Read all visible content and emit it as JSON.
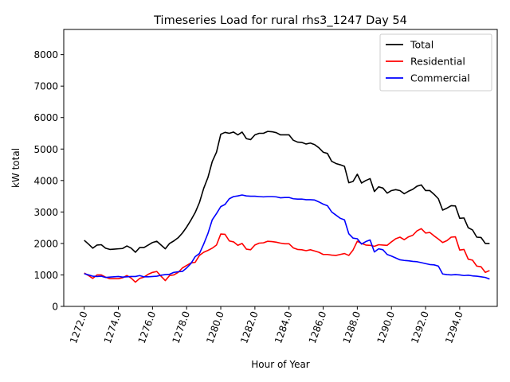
{
  "chart_data": {
    "type": "line",
    "title": "Timeseries Load for rural rhs3_1247  Day 54",
    "xlabel": "Hour of Year",
    "ylabel": "kW total",
    "xlim": [
      1270.8,
      1296.2
    ],
    "ylim": [
      0,
      8800
    ],
    "xticks": [
      1272,
      1274,
      1276,
      1278,
      1280,
      1282,
      1284,
      1286,
      1288,
      1290,
      1292,
      1294
    ],
    "xtick_labels": [
      "1272.0",
      "1274.0",
      "1276.0",
      "1278.0",
      "1280.0",
      "1282.0",
      "1284.0",
      "1286.0",
      "1288.0",
      "1290.0",
      "1292.0",
      "1294.0"
    ],
    "yticks": [
      0,
      1000,
      2000,
      3000,
      4000,
      5000,
      6000,
      7000,
      8000
    ],
    "ytick_labels": [
      "0",
      "1000",
      "2000",
      "3000",
      "4000",
      "5000",
      "6000",
      "7000",
      "8000"
    ],
    "grid": false,
    "legend_position": "top-right",
    "x": [
      1272,
      1272.25,
      1272.5,
      1272.75,
      1273,
      1273.25,
      1273.5,
      1273.75,
      1274,
      1274.25,
      1274.5,
      1274.75,
      1275,
      1275.25,
      1275.5,
      1275.75,
      1276,
      1276.25,
      1276.5,
      1276.75,
      1277,
      1277.25,
      1277.5,
      1277.75,
      1278,
      1278.25,
      1278.5,
      1278.75,
      1279,
      1279.25,
      1279.5,
      1279.75,
      1280,
      1280.25,
      1280.5,
      1280.75,
      1281,
      1281.25,
      1281.5,
      1281.75,
      1282,
      1282.25,
      1282.5,
      1282.75,
      1283,
      1283.25,
      1283.5,
      1283.75,
      1284,
      1284.25,
      1284.5,
      1284.75,
      1285,
      1285.25,
      1285.5,
      1285.75,
      1286,
      1286.25,
      1286.5,
      1286.75,
      1287,
      1287.25,
      1287.5,
      1287.75,
      1288,
      1288.25,
      1288.5,
      1288.75,
      1289,
      1289.25,
      1289.5,
      1289.75,
      1290,
      1290.25,
      1290.5,
      1290.75,
      1291,
      1291.25,
      1291.5,
      1291.75,
      1292,
      1292.25,
      1292.5,
      1292.75,
      1293,
      1293.25,
      1293.5,
      1293.75,
      1294,
      1294.25,
      1294.5,
      1294.75,
      1295,
      1295.25,
      1295.5,
      1295.75
    ],
    "series": [
      {
        "name": "Total",
        "color": "#000000",
        "values": [
          2100,
          1980,
          1850,
          1950,
          1960,
          1850,
          1810,
          1820,
          1830,
          1840,
          1920,
          1850,
          1720,
          1870,
          1870,
          1950,
          2030,
          2070,
          1950,
          1830,
          2000,
          2080,
          2180,
          2330,
          2520,
          2740,
          2980,
          3300,
          3750,
          4100,
          4600,
          4900,
          5470,
          5530,
          5500,
          5540,
          5450,
          5540,
          5330,
          5300,
          5450,
          5500,
          5500,
          5560,
          5550,
          5520,
          5450,
          5450,
          5450,
          5280,
          5220,
          5210,
          5160,
          5190,
          5140,
          5040,
          4900,
          4860,
          4610,
          4540,
          4500,
          4450,
          3930,
          3970,
          4200,
          3920,
          4000,
          4060,
          3650,
          3800,
          3760,
          3600,
          3680,
          3710,
          3680,
          3580,
          3660,
          3720,
          3820,
          3860,
          3680,
          3680,
          3560,
          3420,
          3060,
          3120,
          3200,
          3190,
          2800,
          2810,
          2500,
          2430,
          2200,
          2190,
          2000,
          2000
        ]
      },
      {
        "name": "Residential",
        "color": "#ff0000",
        "values": [
          1060,
          980,
          890,
          1000,
          1000,
          930,
          880,
          880,
          880,
          910,
          980,
          900,
          770,
          890,
          930,
          1020,
          1080,
          1110,
          960,
          820,
          980,
          1000,
          1080,
          1220,
          1300,
          1380,
          1400,
          1620,
          1720,
          1780,
          1850,
          1950,
          2300,
          2290,
          2080,
          2050,
          1940,
          2000,
          1820,
          1800,
          1950,
          2010,
          2020,
          2070,
          2060,
          2040,
          2010,
          1990,
          1990,
          1860,
          1810,
          1800,
          1770,
          1800,
          1760,
          1720,
          1650,
          1650,
          1630,
          1620,
          1650,
          1680,
          1620,
          1790,
          2070,
          2000,
          1950,
          1940,
          1910,
          1960,
          1950,
          1940,
          2050,
          2150,
          2200,
          2120,
          2210,
          2260,
          2400,
          2470,
          2330,
          2350,
          2240,
          2140,
          2030,
          2090,
          2200,
          2210,
          1790,
          1810,
          1500,
          1470,
          1280,
          1260,
          1080,
          1140
        ]
      },
      {
        "name": "Commercial",
        "color": "#0000ff",
        "values": [
          1040,
          1000,
          960,
          950,
          960,
          920,
          930,
          940,
          950,
          930,
          940,
          950,
          950,
          980,
          940,
          940,
          950,
          960,
          990,
          1010,
          1020,
          1080,
          1100,
          1110,
          1220,
          1360,
          1580,
          1680,
          1980,
          2320,
          2750,
          2950,
          3170,
          3240,
          3420,
          3490,
          3510,
          3540,
          3510,
          3500,
          3500,
          3490,
          3480,
          3490,
          3490,
          3480,
          3450,
          3460,
          3460,
          3420,
          3410,
          3410,
          3390,
          3390,
          3380,
          3320,
          3250,
          3200,
          3000,
          2900,
          2800,
          2750,
          2310,
          2170,
          2150,
          1980,
          2060,
          2110,
          1730,
          1830,
          1800,
          1650,
          1600,
          1540,
          1480,
          1460,
          1450,
          1430,
          1420,
          1390,
          1360,
          1330,
          1320,
          1280,
          1030,
          1010,
          1000,
          1010,
          1000,
          980,
          990,
          970,
          960,
          940,
          920,
          870
        ]
      }
    ]
  }
}
